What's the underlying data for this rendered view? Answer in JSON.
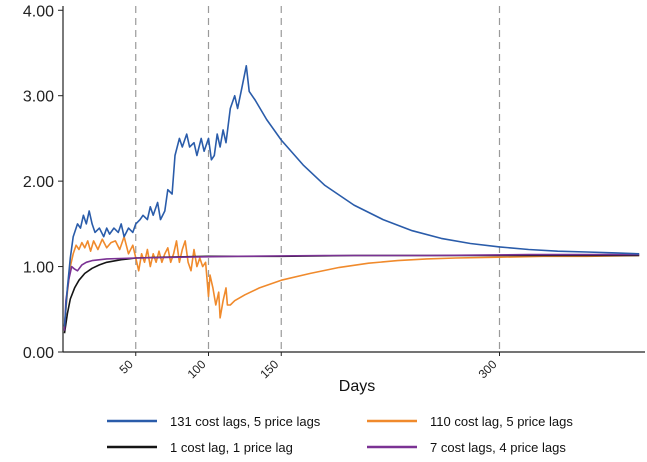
{
  "chart_data": {
    "type": "line",
    "xlabel": "Days",
    "ylabel": "",
    "title": "",
    "xlim": [
      0,
      400
    ],
    "ylim": [
      0,
      4.05
    ],
    "y_ticks": [
      "0.00",
      "1.00",
      "2.00",
      "3.00",
      "4.00"
    ],
    "x_ticks": [
      "50",
      "100",
      "150",
      "300"
    ],
    "vlines": [
      50,
      100,
      150,
      300
    ],
    "grid": "vertical dashed lines at 50, 100, 150, 300",
    "legend_position": "bottom",
    "series": [
      {
        "name": "131 cost lags, 5 price lags",
        "color": "#2a5caa",
        "points": [
          [
            1,
            0.3
          ],
          [
            3,
            0.75
          ],
          [
            5,
            1.1
          ],
          [
            7,
            1.35
          ],
          [
            10,
            1.5
          ],
          [
            12,
            1.45
          ],
          [
            14,
            1.6
          ],
          [
            16,
            1.5
          ],
          [
            18,
            1.65
          ],
          [
            20,
            1.5
          ],
          [
            22,
            1.4
          ],
          [
            25,
            1.45
          ],
          [
            28,
            1.35
          ],
          [
            30,
            1.45
          ],
          [
            32,
            1.38
          ],
          [
            35,
            1.45
          ],
          [
            38,
            1.4
          ],
          [
            40,
            1.5
          ],
          [
            42,
            1.35
          ],
          [
            45,
            1.45
          ],
          [
            48,
            1.4
          ],
          [
            50,
            1.5
          ],
          [
            53,
            1.55
          ],
          [
            55,
            1.6
          ],
          [
            58,
            1.55
          ],
          [
            60,
            1.7
          ],
          [
            62,
            1.6
          ],
          [
            65,
            1.75
          ],
          [
            67,
            1.55
          ],
          [
            70,
            1.65
          ],
          [
            72,
            1.9
          ],
          [
            75,
            1.85
          ],
          [
            77,
            2.3
          ],
          [
            80,
            2.5
          ],
          [
            82,
            2.4
          ],
          [
            85,
            2.55
          ],
          [
            87,
            2.4
          ],
          [
            90,
            2.45
          ],
          [
            92,
            2.3
          ],
          [
            95,
            2.5
          ],
          [
            97,
            2.35
          ],
          [
            100,
            2.5
          ],
          [
            102,
            2.25
          ],
          [
            104,
            2.3
          ],
          [
            106,
            2.55
          ],
          [
            108,
            2.4
          ],
          [
            110,
            2.6
          ],
          [
            112,
            2.45
          ],
          [
            115,
            2.85
          ],
          [
            118,
            3.0
          ],
          [
            120,
            2.85
          ],
          [
            123,
            3.1
          ],
          [
            126,
            3.35
          ],
          [
            128,
            3.05
          ],
          [
            132,
            2.95
          ],
          [
            140,
            2.72
          ],
          [
            150,
            2.48
          ],
          [
            165,
            2.19
          ],
          [
            180,
            1.95
          ],
          [
            200,
            1.72
          ],
          [
            220,
            1.55
          ],
          [
            240,
            1.42
          ],
          [
            260,
            1.33
          ],
          [
            280,
            1.27
          ],
          [
            300,
            1.23
          ],
          [
            320,
            1.2
          ],
          [
            340,
            1.18
          ],
          [
            360,
            1.17
          ],
          [
            380,
            1.16
          ],
          [
            396,
            1.15
          ]
        ]
      },
      {
        "name": "110 cost lag, 5 price lags",
        "color": "#f08a2c",
        "points": [
          [
            1,
            0.3
          ],
          [
            3,
            0.7
          ],
          [
            5,
            1.0
          ],
          [
            7,
            1.15
          ],
          [
            9,
            1.25
          ],
          [
            11,
            1.2
          ],
          [
            13,
            1.28
          ],
          [
            15,
            1.22
          ],
          [
            17,
            1.3
          ],
          [
            19,
            1.18
          ],
          [
            21,
            1.3
          ],
          [
            24,
            1.2
          ],
          [
            27,
            1.32
          ],
          [
            30,
            1.22
          ],
          [
            33,
            1.28
          ],
          [
            36,
            1.3
          ],
          [
            39,
            1.2
          ],
          [
            42,
            1.35
          ],
          [
            45,
            1.15
          ],
          [
            48,
            1.25
          ],
          [
            50,
            1.1
          ],
          [
            52,
            0.95
          ],
          [
            54,
            1.15
          ],
          [
            56,
            1.05
          ],
          [
            58,
            1.2
          ],
          [
            60,
            1.0
          ],
          [
            62,
            1.15
          ],
          [
            64,
            1.05
          ],
          [
            66,
            1.18
          ],
          [
            68,
            1.05
          ],
          [
            70,
            1.15
          ],
          [
            72,
            1.22
          ],
          [
            74,
            1.05
          ],
          [
            76,
            1.15
          ],
          [
            78,
            1.3
          ],
          [
            80,
            1.05
          ],
          [
            82,
            1.2
          ],
          [
            84,
            1.3
          ],
          [
            86,
            1.05
          ],
          [
            88,
            0.95
          ],
          [
            90,
            1.2
          ],
          [
            92,
            1.0
          ],
          [
            94,
            1.1
          ],
          [
            96,
            1.0
          ],
          [
            98,
            1.05
          ],
          [
            100,
            0.65
          ],
          [
            101,
            0.9
          ],
          [
            103,
            0.75
          ],
          [
            105,
            0.55
          ],
          [
            107,
            0.7
          ],
          [
            108,
            0.4
          ],
          [
            110,
            0.6
          ],
          [
            112,
            0.75
          ],
          [
            113,
            0.55
          ],
          [
            115,
            0.55
          ],
          [
            118,
            0.6
          ],
          [
            125,
            0.67
          ],
          [
            135,
            0.75
          ],
          [
            150,
            0.84
          ],
          [
            170,
            0.92
          ],
          [
            190,
            0.99
          ],
          [
            210,
            1.04
          ],
          [
            230,
            1.07
          ],
          [
            250,
            1.09
          ],
          [
            270,
            1.1
          ],
          [
            300,
            1.11
          ],
          [
            330,
            1.12
          ],
          [
            360,
            1.12
          ],
          [
            396,
            1.13
          ]
        ]
      },
      {
        "name": "1 cost lag, 1 price lag",
        "color": "#151515",
        "points": [
          [
            1,
            0.22
          ],
          [
            3,
            0.45
          ],
          [
            5,
            0.62
          ],
          [
            8,
            0.75
          ],
          [
            11,
            0.84
          ],
          [
            15,
            0.92
          ],
          [
            20,
            0.98
          ],
          [
            25,
            1.02
          ],
          [
            30,
            1.05
          ],
          [
            40,
            1.08
          ],
          [
            50,
            1.1
          ],
          [
            70,
            1.11
          ],
          [
            100,
            1.12
          ],
          [
            150,
            1.12
          ],
          [
            200,
            1.13
          ],
          [
            300,
            1.13
          ],
          [
            396,
            1.13
          ]
        ]
      },
      {
        "name": "7 cost lags, 4 price lags",
        "color": "#7b3294",
        "points": [
          [
            1,
            0.25
          ],
          [
            2,
            0.6
          ],
          [
            4,
            0.85
          ],
          [
            6,
            1.0
          ],
          [
            8,
            0.97
          ],
          [
            10,
            0.95
          ],
          [
            13,
            1.02
          ],
          [
            16,
            1.05
          ],
          [
            20,
            1.07
          ],
          [
            30,
            1.09
          ],
          [
            50,
            1.1
          ],
          [
            80,
            1.11
          ],
          [
            120,
            1.12
          ],
          [
            180,
            1.13
          ],
          [
            250,
            1.13
          ],
          [
            320,
            1.14
          ],
          [
            396,
            1.14
          ]
        ]
      }
    ]
  }
}
